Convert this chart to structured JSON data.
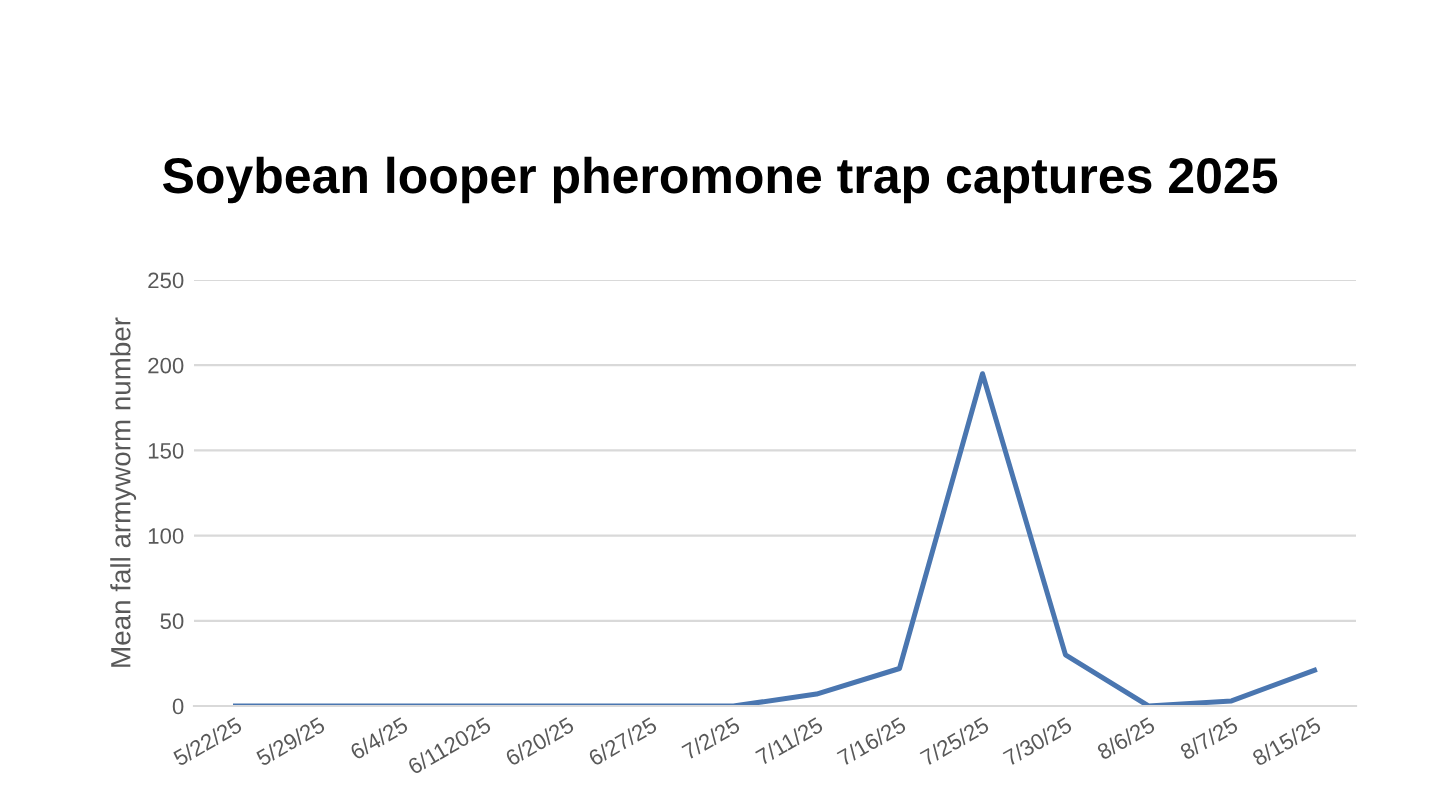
{
  "chart_data": {
    "type": "line",
    "title": "Soybean looper pheromone trap captures 2025",
    "ylabel": "Mean fall armyworm number",
    "categories": [
      "5/22/25",
      "5/29/25",
      "6/4/25",
      "6/112025",
      "6/20/25",
      "6/27/25",
      "7/2/25",
      "7/11/25",
      "7/16/25",
      "7/25/25",
      "7/30/25",
      "8/6/25",
      "8/7/25",
      "8/15/25"
    ],
    "series": [
      {
        "color": "#4a76b0",
        "values": [
          0,
          0,
          0,
          0,
          0,
          0,
          0,
          7,
          22,
          195,
          30,
          0,
          3,
          21
        ]
      }
    ],
    "ylim": [
      0,
      250
    ],
    "yticks": [
      0,
      50,
      100,
      150,
      200,
      250
    ],
    "grid": "y",
    "marker": "none",
    "line_style": "solid"
  }
}
